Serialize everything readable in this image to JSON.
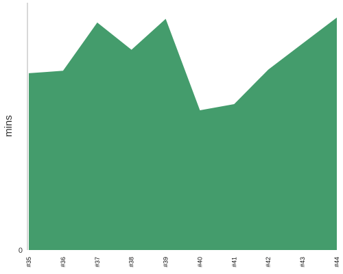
{
  "chart_data": {
    "type": "area",
    "categories": [
      "#35",
      "#36",
      "#37",
      "#38",
      "#39",
      "#40",
      "#41",
      "#42",
      "#43",
      "#44"
    ],
    "x": [
      35,
      35.5,
      36,
      37,
      38,
      39,
      40,
      41,
      42,
      43,
      44
    ],
    "values": [
      71.5,
      72,
      72.5,
      92,
      81,
      93.5,
      56.5,
      59,
      73,
      83.5,
      94
    ],
    "ylabel": "mins",
    "yticks": [
      {
        "value": 0,
        "label": "0"
      }
    ],
    "ylim": [
      0,
      100
    ],
    "xlim": [
      35,
      44
    ],
    "grid": false,
    "legend": "none",
    "colors": {
      "area": "#449c6c",
      "axis": "#b0b0b0"
    }
  }
}
